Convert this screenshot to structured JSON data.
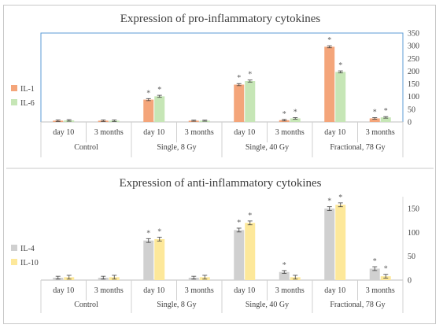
{
  "chart_data": [
    {
      "type": "bar",
      "title": "Expression of pro-inflammatory cytokines",
      "group_labels": [
        "Control",
        "Single, 8 Gy",
        "Single, 40 Gy",
        "Fractional, 78 Gy"
      ],
      "categories": [
        "day 10",
        "3 months",
        "day 10",
        "3 months",
        "day 10",
        "3 months",
        "day 10",
        "3 months"
      ],
      "series": [
        {
          "name": "IL-1",
          "color": "#f4a57a",
          "values": [
            5,
            5,
            88,
            5,
            147,
            7,
            296,
            14
          ],
          "errors": [
            3,
            3,
            4,
            2,
            4,
            3,
            4,
            3
          ],
          "significant": [
            false,
            false,
            true,
            false,
            true,
            true,
            true,
            true
          ]
        },
        {
          "name": "IL-6",
          "color": "#c6e6b6",
          "values": [
            6,
            5,
            101,
            5,
            161,
            14,
            197,
            18
          ],
          "errors": [
            3,
            3,
            4,
            2,
            4,
            3,
            4,
            3
          ],
          "significant": [
            false,
            false,
            true,
            false,
            true,
            true,
            true,
            true
          ]
        }
      ],
      "ylim": [
        0,
        350
      ],
      "yticks": [
        0,
        50,
        100,
        150,
        200,
        250,
        300,
        350
      ],
      "y_axis_side": "right",
      "legend": "left",
      "significance_mark": "*"
    },
    {
      "type": "bar",
      "title": "Expression of anti-inflammatory cytokines",
      "group_labels": [
        "Control",
        "Single, 8 Gy",
        "Single, 40 Gy",
        "Fractional, 78 Gy"
      ],
      "categories": [
        "day 10",
        "3 months",
        "day 10",
        "3 months",
        "day 10",
        "3 months",
        "day 10",
        "3 months"
      ],
      "series": [
        {
          "name": "IL-4",
          "color": "#d0d0d0",
          "values": [
            5,
            5,
            83,
            5,
            105,
            17,
            150,
            24
          ],
          "errors": [
            3,
            3,
            4,
            3,
            4,
            3,
            4,
            4
          ],
          "significant": [
            false,
            false,
            true,
            false,
            true,
            true,
            true,
            true
          ]
        },
        {
          "name": "IL-10",
          "color": "#fde89a",
          "values": [
            6,
            6,
            86,
            6,
            120,
            6,
            158,
            8
          ],
          "errors": [
            4,
            4,
            4,
            4,
            4,
            4,
            4,
            4
          ],
          "significant": [
            false,
            false,
            true,
            false,
            true,
            false,
            true,
            true
          ]
        }
      ],
      "ylim": [
        0,
        175
      ],
      "yticks": [
        0,
        50,
        100,
        150
      ],
      "y_axis_side": "right",
      "legend": "left",
      "significance_mark": "*"
    }
  ]
}
